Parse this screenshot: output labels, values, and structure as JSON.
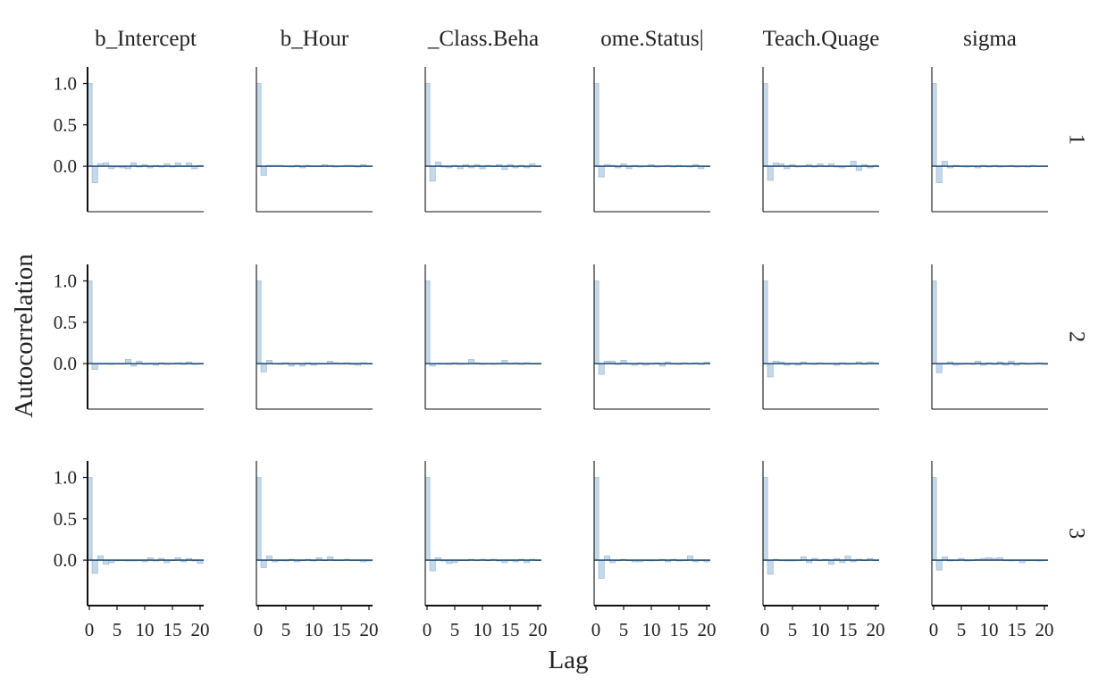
{
  "chart_data": {
    "type": "bar",
    "xlabel": "Lag",
    "ylabel": "Autocorrelation",
    "columns": [
      "b_Intercept",
      "b_Hour",
      "_Class.Beha",
      "ome.Status|",
      "Teach.Quage",
      "sigma"
    ],
    "rows": [
      "1",
      "2",
      "3"
    ],
    "xlim": [
      0,
      20
    ],
    "ylim": [
      -0.55,
      1.2
    ],
    "x_ticks": [
      0,
      5,
      10,
      15,
      20
    ],
    "x_tick_labels": [
      "0",
      "5",
      "10",
      "15",
      "20"
    ],
    "y_ticks": [
      1.0,
      0.5,
      0.0
    ],
    "y_tick_labels": [
      "1.0",
      "0.5",
      "0.0"
    ],
    "lags": [
      0,
      1,
      2,
      3,
      4,
      5,
      6,
      7,
      8,
      9,
      10,
      11,
      12,
      13,
      14,
      15,
      16,
      17,
      18,
      19,
      20
    ],
    "bar_color": "#c6d9ea",
    "bar_stroke": "#9fbfd9",
    "zero_line_color": "#0d3b66",
    "panels": [
      {
        "row": "1",
        "col": "b_Intercept",
        "values": [
          1.0,
          -0.2,
          0.03,
          0.04,
          -0.03,
          -0.01,
          -0.02,
          -0.03,
          0.04,
          -0.01,
          0.02,
          -0.02,
          0.01,
          -0.01,
          0.03,
          -0.01,
          0.04,
          0.0,
          0.04,
          -0.03,
          0.01
        ]
      },
      {
        "row": "1",
        "col": "b_Hour",
        "values": [
          1.0,
          -0.11,
          0.01,
          0.01,
          0.01,
          0.0,
          -0.01,
          0.01,
          -0.02,
          0.01,
          0.0,
          0.0,
          0.02,
          0.01,
          -0.01,
          0.0,
          0.01,
          0.01,
          -0.01,
          0.02,
          0.0
        ]
      },
      {
        "row": "1",
        "col": "_Class.Beha",
        "values": [
          1.0,
          -0.18,
          0.05,
          -0.01,
          -0.02,
          0.01,
          -0.03,
          0.02,
          -0.02,
          0.02,
          -0.03,
          0.01,
          0.0,
          0.02,
          -0.04,
          0.02,
          -0.02,
          0.01,
          -0.02,
          0.03,
          0.0
        ]
      },
      {
        "row": "1",
        "col": "ome.Status|",
        "values": [
          1.0,
          -0.13,
          0.02,
          0.01,
          -0.02,
          0.03,
          -0.03,
          0.01,
          -0.01,
          0.0,
          0.02,
          -0.01,
          0.0,
          0.01,
          -0.01,
          0.01,
          0.0,
          -0.01,
          0.02,
          -0.03,
          0.0
        ]
      },
      {
        "row": "1",
        "col": "Teach.Quage",
        "values": [
          1.0,
          -0.17,
          0.04,
          0.03,
          -0.03,
          0.02,
          -0.01,
          0.0,
          0.02,
          -0.01,
          0.03,
          0.0,
          0.03,
          -0.01,
          -0.02,
          0.0,
          0.06,
          -0.05,
          0.02,
          -0.02,
          0.01
        ]
      },
      {
        "row": "1",
        "col": "sigma",
        "values": [
          1.0,
          -0.2,
          0.06,
          -0.02,
          0.01,
          0.0,
          -0.01,
          0.0,
          -0.02,
          0.01,
          -0.01,
          0.01,
          -0.01,
          0.0,
          0.01,
          -0.01,
          0.0,
          -0.01,
          0.01,
          0.0,
          0.0
        ]
      },
      {
        "row": "2",
        "col": "b_Intercept",
        "values": [
          1.0,
          -0.07,
          0.0,
          0.0,
          -0.01,
          0.0,
          0.0,
          0.05,
          -0.03,
          0.03,
          -0.01,
          0.0,
          -0.02,
          0.01,
          -0.01,
          0.0,
          0.01,
          -0.01,
          0.02,
          -0.01,
          0.0
        ]
      },
      {
        "row": "2",
        "col": "b_Hour",
        "values": [
          1.0,
          -0.1,
          0.04,
          0.0,
          -0.01,
          0.01,
          -0.03,
          0.0,
          -0.03,
          0.01,
          -0.02,
          0.0,
          0.0,
          0.03,
          0.01,
          0.0,
          0.01,
          -0.01,
          -0.02,
          0.01,
          0.0
        ]
      },
      {
        "row": "2",
        "col": "_Class.Beha",
        "values": [
          1.0,
          -0.03,
          0.0,
          0.0,
          -0.01,
          0.01,
          -0.01,
          0.0,
          0.05,
          0.01,
          -0.01,
          0.0,
          -0.01,
          0.0,
          0.04,
          0.0,
          0.01,
          -0.01,
          0.01,
          0.0,
          0.0
        ]
      },
      {
        "row": "2",
        "col": "ome.Status|",
        "values": [
          1.0,
          -0.13,
          0.03,
          0.03,
          -0.01,
          0.04,
          0.0,
          -0.02,
          0.01,
          -0.02,
          0.0,
          0.01,
          -0.03,
          0.02,
          0.0,
          -0.01,
          0.01,
          0.0,
          0.01,
          -0.01,
          0.02
        ]
      },
      {
        "row": "2",
        "col": "Teach.Quage",
        "values": [
          1.0,
          -0.16,
          0.03,
          0.02,
          -0.02,
          0.0,
          -0.02,
          0.02,
          0.0,
          -0.01,
          0.01,
          0.0,
          0.0,
          -0.02,
          0.01,
          -0.01,
          0.0,
          0.02,
          -0.01,
          0.02,
          0.01
        ]
      },
      {
        "row": "2",
        "col": "sigma",
        "values": [
          1.0,
          -0.11,
          0.0,
          0.02,
          -0.02,
          -0.01,
          0.0,
          -0.01,
          0.03,
          -0.02,
          0.01,
          -0.01,
          0.02,
          -0.02,
          0.03,
          -0.02,
          0.01,
          -0.01,
          0.0,
          0.01,
          -0.01
        ]
      },
      {
        "row": "3",
        "col": "b_Intercept",
        "values": [
          1.0,
          -0.16,
          0.05,
          -0.05,
          -0.03,
          0.0,
          0.0,
          -0.01,
          -0.01,
          0.0,
          -0.02,
          0.03,
          -0.01,
          0.02,
          -0.03,
          0.0,
          0.03,
          -0.02,
          0.02,
          -0.01,
          -0.04
        ]
      },
      {
        "row": "3",
        "col": "b_Hour",
        "values": [
          1.0,
          -0.09,
          0.05,
          -0.02,
          0.0,
          -0.01,
          0.01,
          -0.02,
          0.0,
          0.01,
          -0.01,
          0.03,
          0.0,
          0.04,
          0.0,
          0.0,
          0.01,
          0.0,
          0.0,
          -0.02,
          -0.01
        ]
      },
      {
        "row": "3",
        "col": "_Class.Beha",
        "values": [
          1.0,
          -0.13,
          0.03,
          -0.01,
          -0.04,
          -0.03,
          0.0,
          0.0,
          0.01,
          0.0,
          0.01,
          0.0,
          0.01,
          -0.01,
          -0.03,
          0.0,
          -0.02,
          0.01,
          -0.03,
          0.01,
          0.0
        ]
      },
      {
        "row": "3",
        "col": "ome.Status|",
        "values": [
          1.0,
          -0.22,
          0.05,
          -0.03,
          0.0,
          0.01,
          0.0,
          -0.02,
          -0.02,
          0.0,
          -0.01,
          0.0,
          0.01,
          -0.02,
          0.01,
          -0.01,
          0.0,
          0.05,
          -0.02,
          0.0,
          -0.02
        ]
      },
      {
        "row": "3",
        "col": "Teach.Quage",
        "values": [
          1.0,
          -0.17,
          0.01,
          0.0,
          -0.01,
          -0.01,
          0.0,
          0.04,
          -0.03,
          0.02,
          0.0,
          0.01,
          -0.05,
          0.02,
          -0.03,
          0.05,
          -0.02,
          0.01,
          0.0,
          0.02,
          0.0
        ]
      },
      {
        "row": "3",
        "col": "sigma",
        "values": [
          1.0,
          -0.12,
          0.04,
          -0.01,
          0.0,
          0.02,
          -0.01,
          0.0,
          0.01,
          0.02,
          0.03,
          0.02,
          0.03,
          0.0,
          -0.01,
          0.0,
          -0.03,
          0.0,
          0.0,
          -0.01,
          0.0
        ]
      }
    ]
  }
}
